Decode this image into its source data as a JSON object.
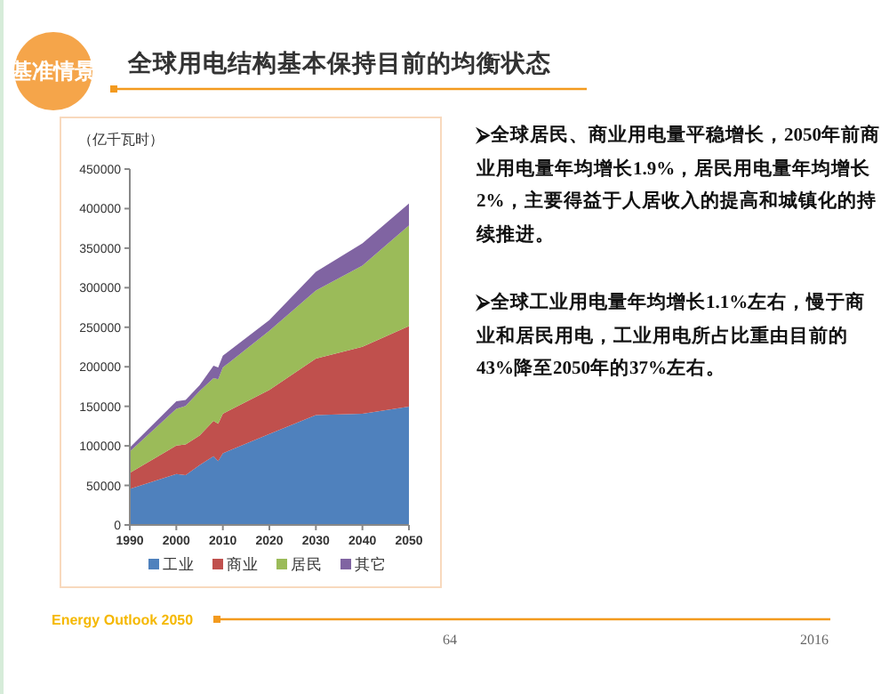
{
  "chart_data": {
    "type": "area",
    "stacked": true,
    "title": "全球用电结构基本保持目前的均衡状态",
    "ylabel": "（亿千瓦时）",
    "x": [
      1990,
      2000,
      2002,
      2005,
      2008,
      2009,
      2010,
      2020,
      2030,
      2040,
      2050
    ],
    "series": [
      {
        "name": "工业",
        "color": "#4f81bd",
        "values": [
          45700,
          64400,
          63000,
          75600,
          86800,
          80800,
          90600,
          115000,
          139000,
          140700,
          149700
        ]
      },
      {
        "name": "商业",
        "color": "#c0504d",
        "values": [
          20200,
          35900,
          38800,
          37400,
          44900,
          47200,
          50100,
          55700,
          71300,
          84600,
          101800
        ]
      },
      {
        "name": "居民",
        "color": "#9bbb59",
        "values": [
          26900,
          46400,
          48700,
          56200,
          53900,
          56100,
          58400,
          74800,
          86100,
          102500,
          127200
        ]
      },
      {
        "name": "其它",
        "color": "#8064a2",
        "values": [
          5200,
          9700,
          7500,
          7400,
          15800,
          15000,
          14900,
          13500,
          23600,
          28200,
          27700
        ]
      }
    ],
    "xlim": [
      1990,
      2050
    ],
    "xticks": [
      1990,
      2000,
      2010,
      2020,
      2030,
      2040,
      2050
    ],
    "ylim": [
      0,
      450000
    ],
    "yticks": [
      0,
      50000,
      100000,
      150000,
      200000,
      250000,
      300000,
      350000,
      400000,
      450000
    ],
    "legend": "bottom",
    "grid": false,
    "annotations": [
      "基准情景",
      "⮚全球居民、商业用电量平稳增长，2050年前商业用电量年均增长1.9%，居民用电量年均增长2%，主要得益于人居收入的提高和城镇化的持续推进。",
      "⮚全球工业用电量年均增长1.1%左右，慢于商业和居民用电，工业用电所占比重由目前的43%降至2050年的37%左右。",
      "Energy Outlook 2050",
      "64",
      "2016"
    ]
  }
}
